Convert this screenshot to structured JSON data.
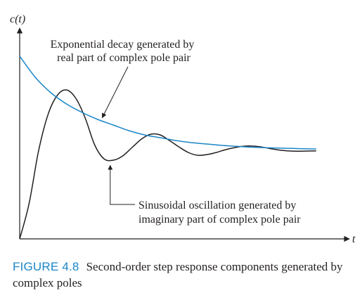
{
  "chart_data": {
    "type": "line",
    "title": "",
    "ylabel": "c(t)",
    "xlabel": "t",
    "grid": false,
    "legend": "none",
    "xlim": [
      0,
      10
    ],
    "ylim": [
      0,
      1.4
    ],
    "series": [
      {
        "key": "envelope",
        "color": "#1a86c8",
        "points": [
          [
            0,
            1.3
          ],
          [
            0.5,
            1.15
          ],
          [
            1,
            1.04
          ],
          [
            1.5,
            0.96
          ],
          [
            2,
            0.9
          ],
          [
            2.5,
            0.85
          ],
          [
            3,
            0.81
          ],
          [
            3.5,
            0.77
          ],
          [
            4,
            0.74
          ],
          [
            4.5,
            0.72
          ],
          [
            5,
            0.7
          ],
          [
            5.5,
            0.685
          ],
          [
            6,
            0.675
          ],
          [
            6.5,
            0.665
          ],
          [
            7,
            0.658
          ],
          [
            7.5,
            0.652
          ],
          [
            8,
            0.648
          ],
          [
            8.5,
            0.645
          ],
          [
            9,
            0.642
          ],
          [
            9.5,
            0.64
          ]
        ]
      },
      {
        "key": "response",
        "color": "#231f20",
        "points": [
          [
            0,
            0
          ],
          [
            0.3,
            0.25
          ],
          [
            0.6,
            0.62
          ],
          [
            0.9,
            0.88
          ],
          [
            1.2,
            1.02
          ],
          [
            1.5,
            1.06
          ],
          [
            1.8,
            1.0
          ],
          [
            2.1,
            0.86
          ],
          [
            2.4,
            0.67
          ],
          [
            2.7,
            0.57
          ],
          [
            3.0,
            0.56
          ],
          [
            3.3,
            0.59
          ],
          [
            3.6,
            0.65
          ],
          [
            3.9,
            0.71
          ],
          [
            4.2,
            0.745
          ],
          [
            4.5,
            0.74
          ],
          [
            4.8,
            0.7
          ],
          [
            5.1,
            0.655
          ],
          [
            5.4,
            0.615
          ],
          [
            5.7,
            0.595
          ],
          [
            6.0,
            0.6
          ],
          [
            6.3,
            0.615
          ],
          [
            6.6,
            0.635
          ],
          [
            6.9,
            0.65
          ],
          [
            7.2,
            0.66
          ],
          [
            7.5,
            0.66
          ],
          [
            7.8,
            0.652
          ],
          [
            8.1,
            0.64
          ],
          [
            8.4,
            0.63
          ],
          [
            8.7,
            0.625
          ],
          [
            9.0,
            0.624
          ],
          [
            9.5,
            0.626
          ]
        ]
      }
    ],
    "annotations": [
      {
        "key": "decay_note",
        "lines": [
          "Exponential decay generated by",
          "real part of complex pole pair"
        ],
        "points_to_series": "envelope",
        "at_x": 2.6
      },
      {
        "key": "oscillation_note",
        "lines": [
          "Sinusoidal oscillation generated by",
          "imaginary part of complex pole pair"
        ],
        "points_to_series": "response",
        "at_x": 2.9
      }
    ]
  },
  "caption": {
    "figure_label": "FIGURE 4.8",
    "text": "Second-order step response components generated by complex poles"
  },
  "colors": {
    "accent": "#1a86c8",
    "ink": "#231f20"
  }
}
